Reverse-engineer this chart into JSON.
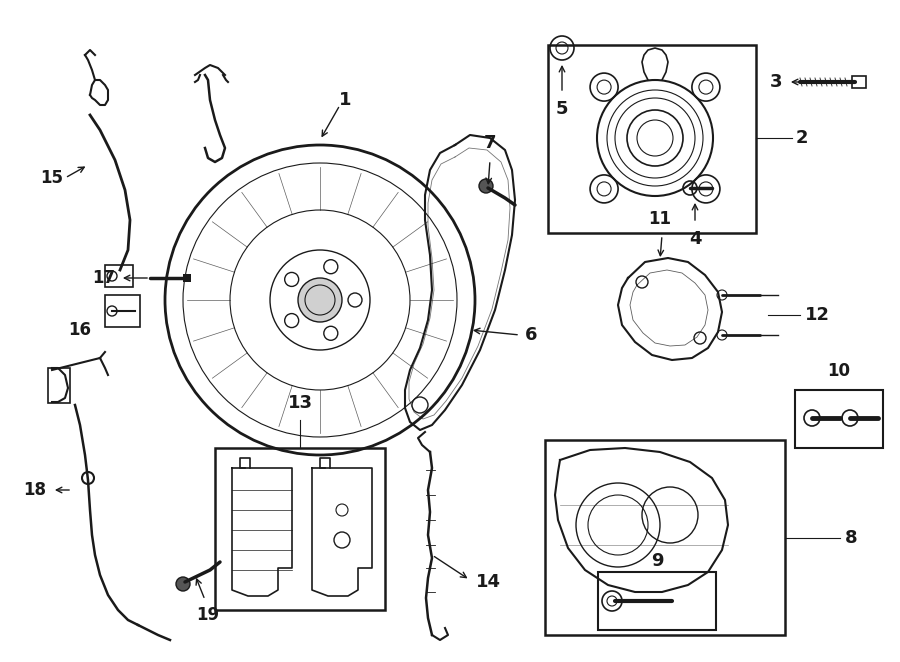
{
  "bg": "#ffffff",
  "lc": "#1a1a1a",
  "lw": 1.0,
  "fig_w": 9.0,
  "fig_h": 6.62,
  "dpi": 100,
  "xlim": [
    0,
    900
  ],
  "ylim": [
    0,
    662
  ]
}
